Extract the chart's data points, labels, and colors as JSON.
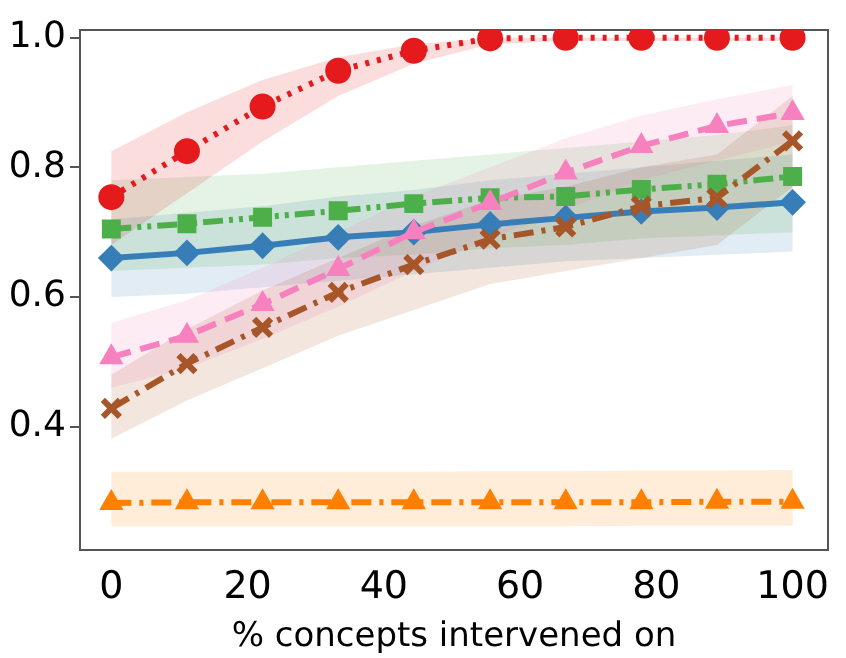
{
  "chart_data": {
    "type": "line",
    "xlabel": "% concepts intervened on",
    "x": [
      0,
      11.1,
      22.2,
      33.3,
      44.4,
      55.6,
      66.7,
      77.8,
      88.9,
      100
    ],
    "xlim": [
      -4.6,
      105.2
    ],
    "xticks": [
      0,
      20,
      40,
      60,
      80,
      100
    ],
    "ylim": [
      0.21,
      1.012
    ],
    "yticks": [
      {
        "value": 0.4,
        "label": "0.4"
      },
      {
        "value": 0.6,
        "label": "0.6"
      },
      {
        "value": 0.8,
        "label": "0.8"
      },
      {
        "value": 1,
        "label": "1.0"
      }
    ],
    "grid": false,
    "legend": false,
    "series": [
      {
        "color": "#377eb8",
        "marker": "diamond",
        "line_style": "solid",
        "values": [
          0.66,
          0.668,
          0.679,
          0.692,
          0.7,
          0.712,
          0.722,
          0.732,
          0.738,
          0.746
        ],
        "lower": [
          0.6,
          0.605,
          0.615,
          0.625,
          0.635,
          0.645,
          0.655,
          0.66,
          0.665,
          0.67
        ],
        "upper": [
          0.72,
          0.73,
          0.74,
          0.755,
          0.765,
          0.78,
          0.79,
          0.8,
          0.81,
          0.82
        ]
      },
      {
        "color": "#ff7f00",
        "marker": "triangle",
        "line_style": "dashdot",
        "values": [
          0.282,
          0.283,
          0.283,
          0.283,
          0.283,
          0.283,
          0.283,
          0.283,
          0.284,
          0.284
        ],
        "lower": [
          0.246,
          0.246,
          0.246,
          0.246,
          0.246,
          0.246,
          0.246,
          0.247,
          0.247,
          0.247
        ],
        "upper": [
          0.33,
          0.33,
          0.33,
          0.33,
          0.33,
          0.331,
          0.331,
          0.332,
          0.332,
          0.333
        ]
      },
      {
        "color": "#4daf4a",
        "marker": "square",
        "line_style": "dashdotdot",
        "values": [
          0.705,
          0.713,
          0.723,
          0.733,
          0.744,
          0.753,
          0.755,
          0.766,
          0.774,
          0.786
        ],
        "lower": [
          0.64,
          0.645,
          0.65,
          0.66,
          0.665,
          0.675,
          0.68,
          0.69,
          0.695,
          0.7
        ],
        "upper": [
          0.78,
          0.785,
          0.79,
          0.8,
          0.81,
          0.82,
          0.83,
          0.84,
          0.85,
          0.865
        ]
      },
      {
        "color": "#f781bf",
        "marker": "triangle",
        "line_style": "dashed",
        "values": [
          0.507,
          0.54,
          0.589,
          0.643,
          0.7,
          0.745,
          0.792,
          0.833,
          0.864,
          0.884
        ],
        "lower": [
          0.46,
          0.49,
          0.535,
          0.585,
          0.64,
          0.69,
          0.735,
          0.78,
          0.81,
          0.84
        ],
        "upper": [
          0.56,
          0.595,
          0.645,
          0.7,
          0.755,
          0.8,
          0.845,
          0.88,
          0.905,
          0.927
        ]
      },
      {
        "color": "#a65628",
        "marker": "cross",
        "line_style": "dashdot",
        "values": [
          0.428,
          0.497,
          0.553,
          0.607,
          0.65,
          0.689,
          0.708,
          0.74,
          0.753,
          0.841
        ],
        "lower": [
          0.381,
          0.44,
          0.49,
          0.54,
          0.58,
          0.62,
          0.64,
          0.66,
          0.68,
          0.77
        ],
        "upper": [
          0.48,
          0.55,
          0.61,
          0.66,
          0.71,
          0.75,
          0.77,
          0.8,
          0.82,
          0.91
        ]
      },
      {
        "color": "#e41a1c",
        "marker": "circle",
        "line_style": "dotted",
        "values": [
          0.754,
          0.825,
          0.894,
          0.949,
          0.98,
          0.999,
          1,
          1,
          1,
          1
        ],
        "lower": [
          0.68,
          0.76,
          0.84,
          0.91,
          0.96,
          0.99,
          0.995,
          0.995,
          0.995,
          0.995
        ],
        "upper": [
          0.825,
          0.885,
          0.935,
          0.97,
          0.99,
          1.0,
          1.0,
          1.0,
          1.0,
          1.0
        ]
      }
    ]
  }
}
